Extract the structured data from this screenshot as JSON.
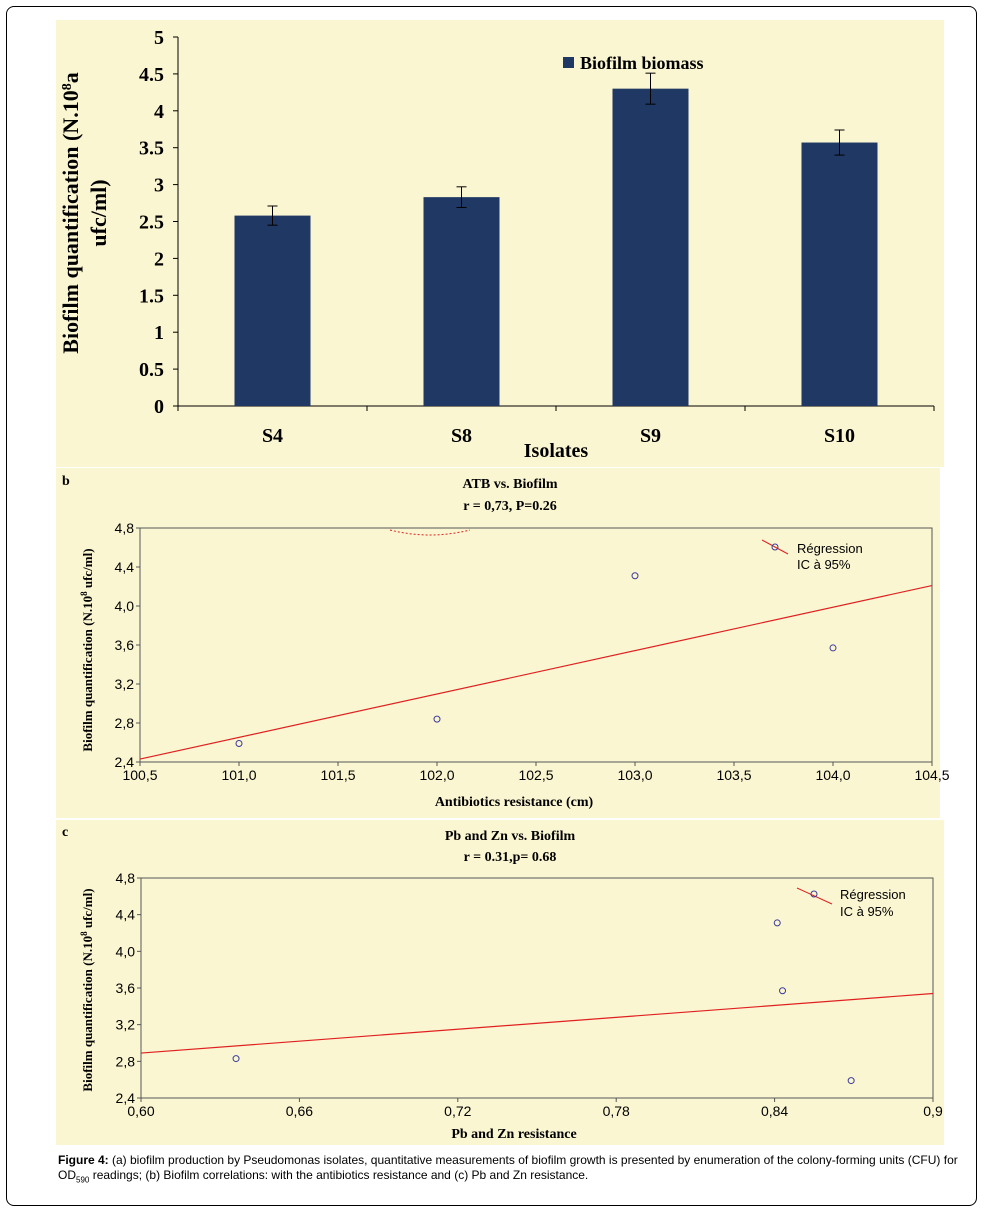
{
  "colors": {
    "panel_bg": "#fbf6d2",
    "bar": "#1f3864",
    "regression": "#e02020",
    "point": "#3a3a9a"
  },
  "chart_data": [
    {
      "panel": "a",
      "type": "bar",
      "title": "",
      "categories": [
        "S4",
        "S8",
        "S9",
        "S10"
      ],
      "series": [
        {
          "name": "Biofilm biomass",
          "values": [
            2.58,
            2.83,
            4.3,
            3.57
          ],
          "errors": [
            0.13,
            0.14,
            0.21,
            0.17
          ]
        }
      ],
      "xlabel": "Isolates",
      "ylabel_line1": "Biofilm quantification  (N.10",
      "ylabel_sup": "8",
      "ylabel_line1_end": "a",
      "ylabel_line2": "ufc/ml)",
      "ylim": [
        0,
        5
      ],
      "yticks": [
        "0",
        "0.5",
        "1",
        "1.5",
        "2",
        "2.5",
        "3",
        "3.5",
        "4",
        "4.5",
        "5"
      ],
      "legend": "top-right"
    },
    {
      "panel": "b",
      "type": "scatter",
      "title": "ATB vs. Biofilm",
      "subtitle": "r = 0,73, P=0.26",
      "xlabel": "Antibiotics resistance (cm)",
      "ylabel_pre": "Biofilm quantification  (N.10",
      "ylabel_sup": "8",
      "ylabel_post": " ufc/ml)",
      "x": [
        101.0,
        102.0,
        103.0,
        104.0
      ],
      "y": [
        2.59,
        2.84,
        4.31,
        3.57
      ],
      "regression": {
        "x": [
          100.5,
          104.5
        ],
        "y": [
          2.43,
          4.21
        ]
      },
      "xlim": [
        100.5,
        104.5
      ],
      "ylim": [
        2.4,
        4.8
      ],
      "xticks": [
        {
          "v": 100.5,
          "label": "100,5"
        },
        {
          "v": 101.0,
          "label": "101,0"
        },
        {
          "v": 101.5,
          "label": "101,5"
        },
        {
          "v": 102.0,
          "label": "102,0"
        },
        {
          "v": 102.5,
          "label": "102,5"
        },
        {
          "v": 103.0,
          "label": "103,0"
        },
        {
          "v": 103.5,
          "label": "103,5"
        },
        {
          "v": 104.0,
          "label": "104,0"
        },
        {
          "v": 104.5,
          "label": "104,5"
        }
      ],
      "yticks": [
        {
          "v": 2.4,
          "label": "2,4"
        },
        {
          "v": 2.8,
          "label": "2,8"
        },
        {
          "v": 3.2,
          "label": "3,2"
        },
        {
          "v": 3.6,
          "label": "3,6"
        },
        {
          "v": 4.0,
          "label": "4,0"
        },
        {
          "v": 4.4,
          "label": "4,4"
        },
        {
          "v": 4.8,
          "label": "4,8"
        }
      ],
      "legend": [
        "Régression",
        "IC à 95%"
      ]
    },
    {
      "panel": "c",
      "type": "scatter",
      "title": "Pb and Zn  vs. Biofilm",
      "subtitle": "r = 0.31,p= 0.68",
      "xlabel": "Pb and Zn resistance",
      "ylabel_pre": "Biofilm quantification  (N.10",
      "ylabel_sup": "8",
      "ylabel_post": " ufc/ml)",
      "x": [
        0.636,
        0.841,
        0.843,
        0.869
      ],
      "y": [
        2.83,
        4.31,
        3.57,
        2.59
      ],
      "regression": {
        "x": [
          0.6,
          0.9
        ],
        "y": [
          2.89,
          3.54
        ]
      },
      "xlim": [
        0.6,
        0.9
      ],
      "ylim": [
        2.4,
        4.8
      ],
      "xticks": [
        {
          "v": 0.6,
          "label": "0,60"
        },
        {
          "v": 0.66,
          "label": "0,66"
        },
        {
          "v": 0.72,
          "label": "0,72"
        },
        {
          "v": 0.78,
          "label": "0,78"
        },
        {
          "v": 0.84,
          "label": "0,84"
        },
        {
          "v": 0.9,
          "label": "0,9"
        }
      ],
      "yticks": [
        {
          "v": 2.4,
          "label": "2,4"
        },
        {
          "v": 2.8,
          "label": "2,8"
        },
        {
          "v": 3.2,
          "label": "3,2"
        },
        {
          "v": 3.6,
          "label": "3,6"
        },
        {
          "v": 4.0,
          "label": "4,0"
        },
        {
          "v": 4.4,
          "label": "4,4"
        },
        {
          "v": 4.8,
          "label": "4,8"
        }
      ],
      "legend": [
        "Régression",
        "IC à 95%"
      ]
    }
  ],
  "caption": {
    "label": "Figure 4:",
    "text1": " (a) biofilm production by Pseudomonas isolates, quantitative measurements of biofilm growth is presented by enumeration of the colony-forming units (CFU) for OD",
    "sub": "590",
    "text2": " readings; (b) Biofilm correlations: with the antibiotics resistance and (c) Pb and Zn resistance."
  }
}
